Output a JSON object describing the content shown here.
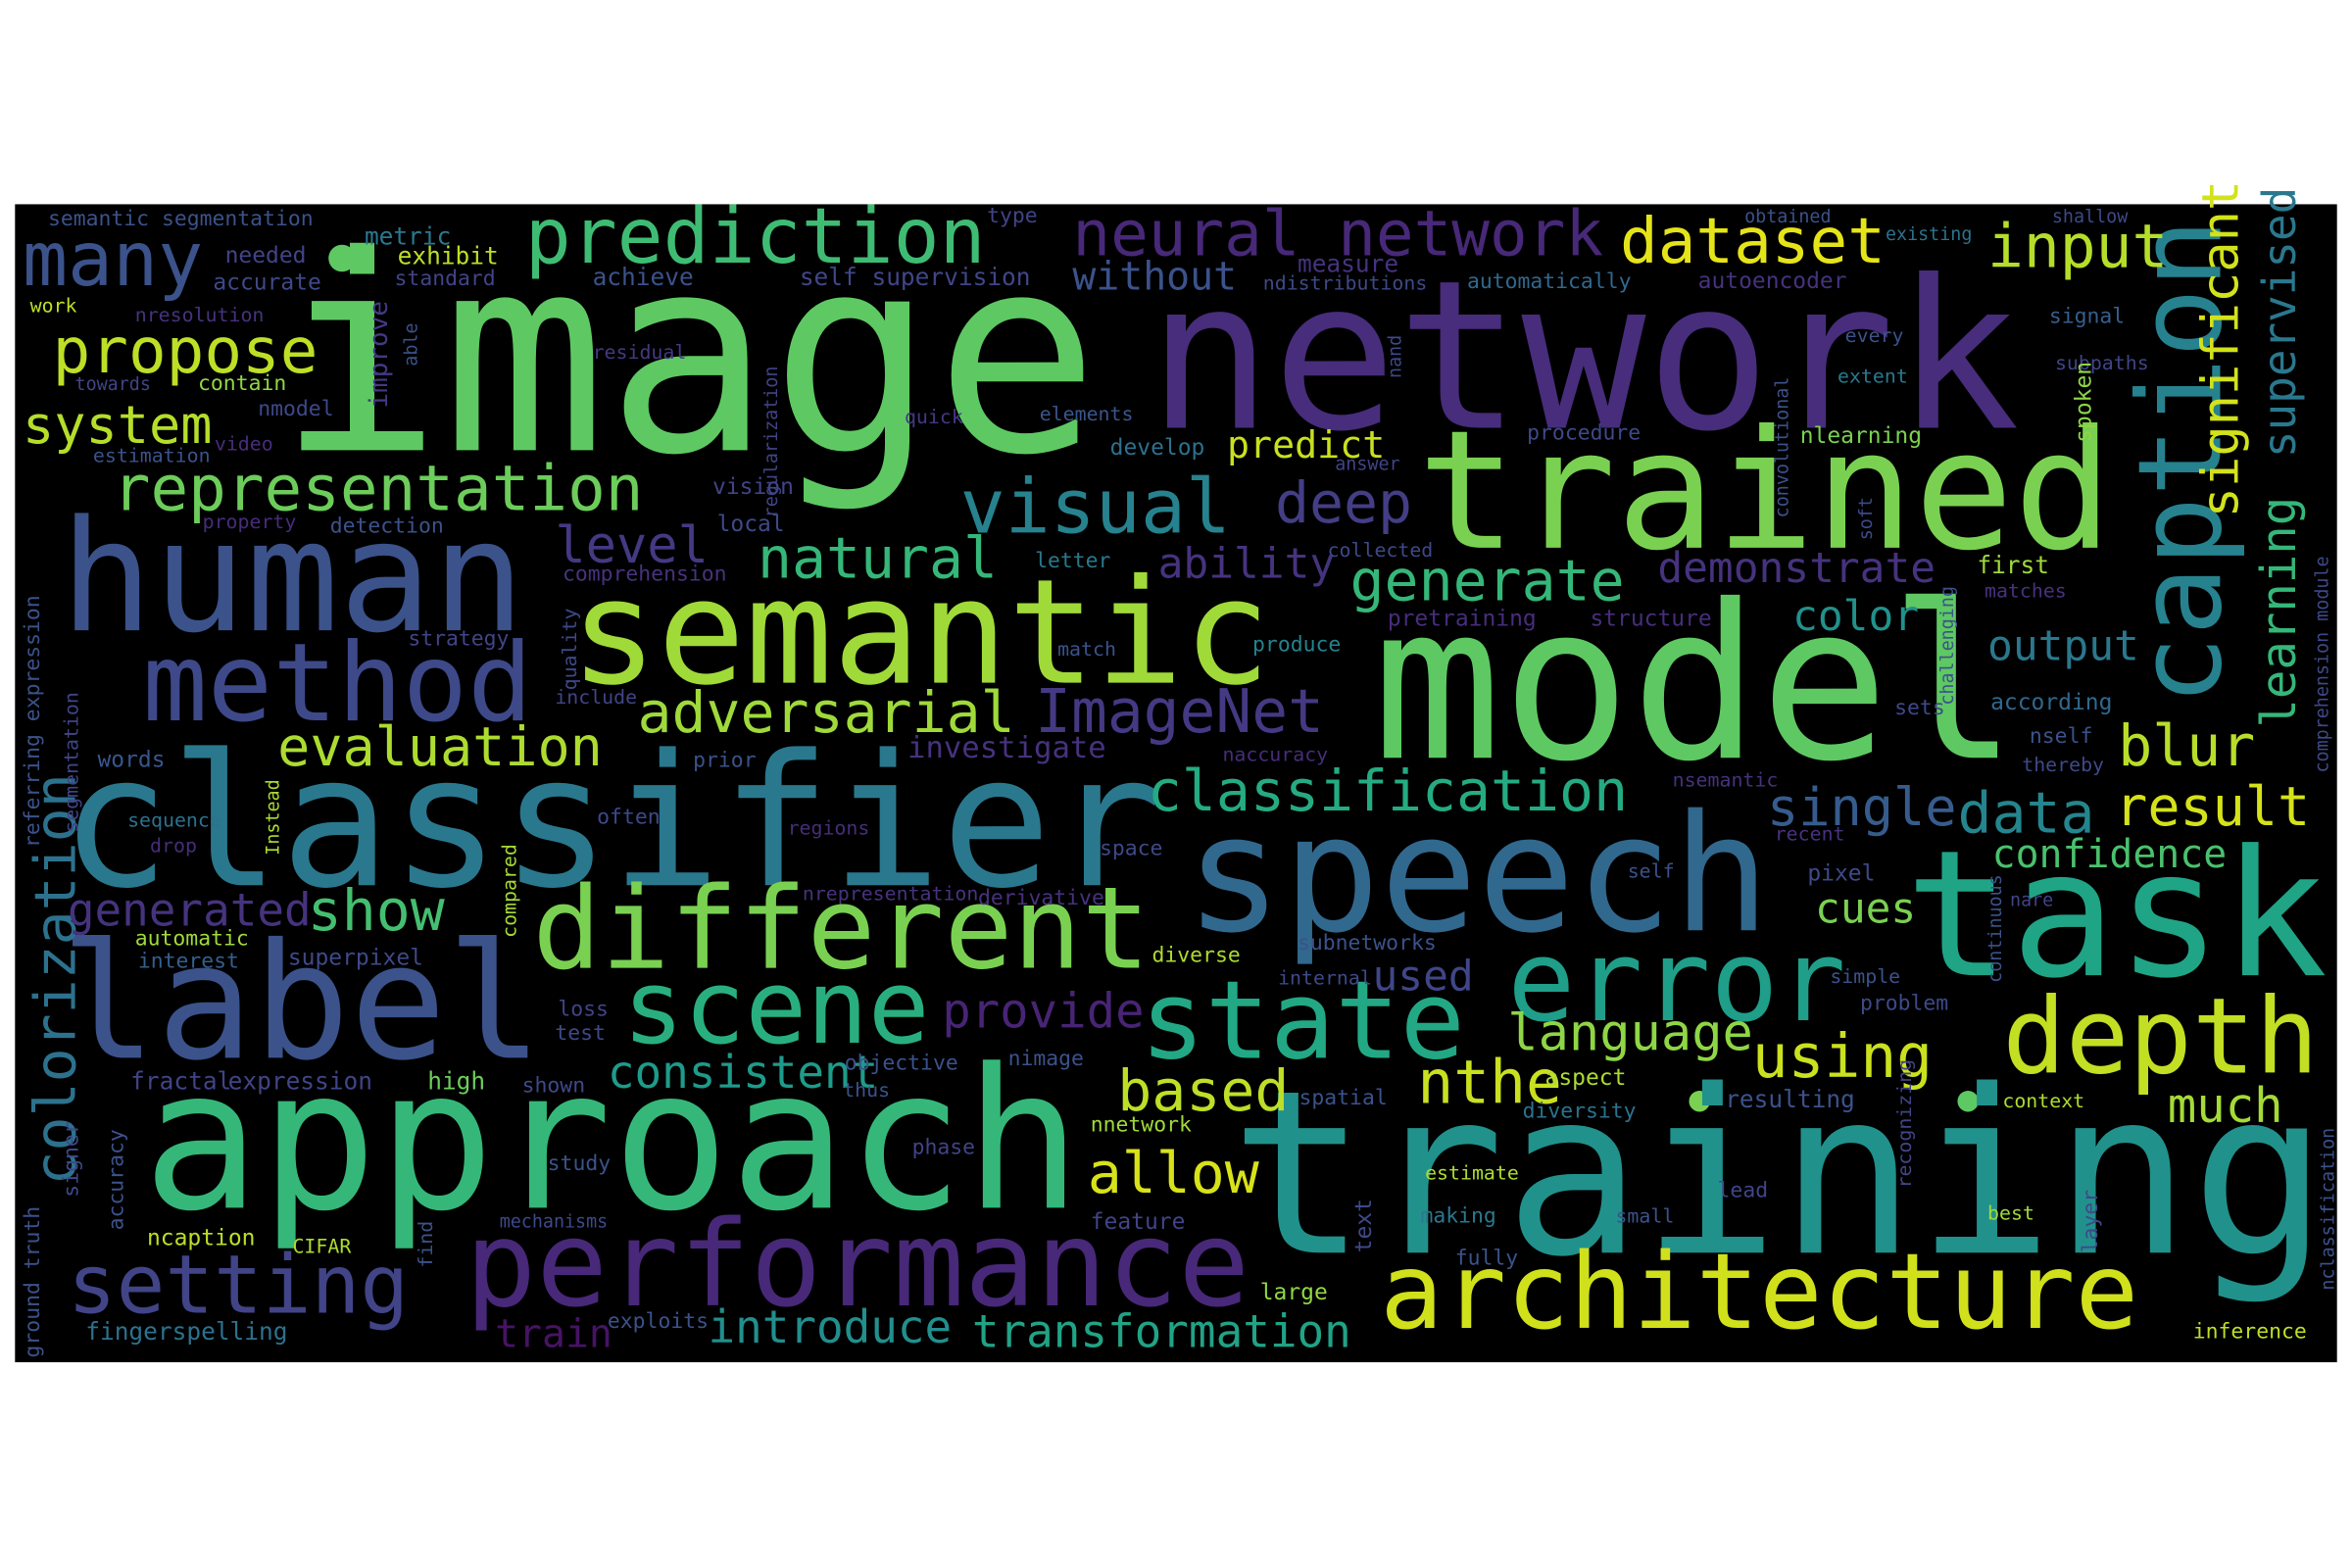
{
  "words": [
    "image",
    "network",
    "trained",
    "model",
    "training",
    "approach",
    "classifier",
    "speech",
    "task",
    "caption",
    "human",
    "semantic",
    "label",
    "method",
    "different",
    "performance",
    "architecture",
    "error",
    "state",
    "scene",
    "depth",
    "setting",
    "prediction",
    "neural network",
    "dataset",
    "input",
    "many",
    "propose",
    "system",
    "representation",
    "visual",
    "deep",
    "without",
    "predict",
    "significant",
    "supervised",
    "learning",
    "generate",
    "demonstrate",
    "level",
    "natural",
    "ability",
    "adversarial",
    "ImageNet",
    "evaluation",
    "investigate",
    "color",
    "output",
    "blur",
    "classification",
    "single",
    "data",
    "result",
    "confidence",
    "cues",
    "colorization",
    "generated",
    "show",
    "provide",
    "used",
    "language",
    "using",
    "consistent",
    "nthe",
    "based",
    "much",
    "allow",
    "introduce",
    "transformation",
    "train",
    "semantic segmentation",
    "type",
    "obtained",
    "shallow",
    "needed",
    "metric",
    "exhibit",
    "standard",
    "accurate",
    "achieve",
    "self supervision",
    "measure",
    "ndistributions",
    "automatically",
    "autoencoder",
    "existing",
    "work",
    "nresolution",
    "nmodel",
    "signal",
    "every",
    "extent",
    "subpaths",
    "quick",
    "elements",
    "residual",
    "answer",
    "develop",
    "procedure",
    "nlearning",
    "video",
    "towards",
    "contain",
    "estimation",
    "vision",
    "local",
    "detection",
    "property",
    "comprehension",
    "letter",
    "collected",
    "first",
    "matches",
    "pretraining",
    "structure",
    "strategy",
    "match",
    "produce",
    "include",
    "sets",
    "according",
    "naccuracy",
    "prior",
    "words",
    "nself",
    "thereby",
    "nsemantic",
    "sequence",
    "often",
    "regions",
    "drop",
    "space",
    "recent",
    "self",
    "pixel",
    "nare",
    "nrepresentation",
    "derivative",
    "automatic",
    "superpixel",
    "interest",
    "diverse",
    "subnetworks",
    "internal",
    "simple",
    "problem",
    "loss",
    "test",
    "fractal",
    "expression",
    "high",
    "shown",
    "objective",
    "nimage",
    "thus",
    "aspect",
    "diversity",
    "resulting",
    "context",
    "spatial",
    "nnetwork",
    "phase",
    "study",
    "estimate",
    "lead",
    "making",
    "small",
    "best",
    "mechanisms",
    "feature",
    "ncaption",
    "CIFAR",
    "fully",
    "large",
    "fingerspelling",
    "exploits",
    "inference",
    "improve",
    "able",
    "regularization",
    "nand",
    "convolutional",
    "spoken",
    "soft",
    "comprehension module",
    "referring expression",
    "segmentation",
    "quality",
    "Instead",
    "challenging",
    "compared",
    "accuracy",
    "ground truth",
    "find",
    "text",
    "recognizing",
    "continuous",
    "layer",
    "nclassification",
    "signer"
  ]
}
